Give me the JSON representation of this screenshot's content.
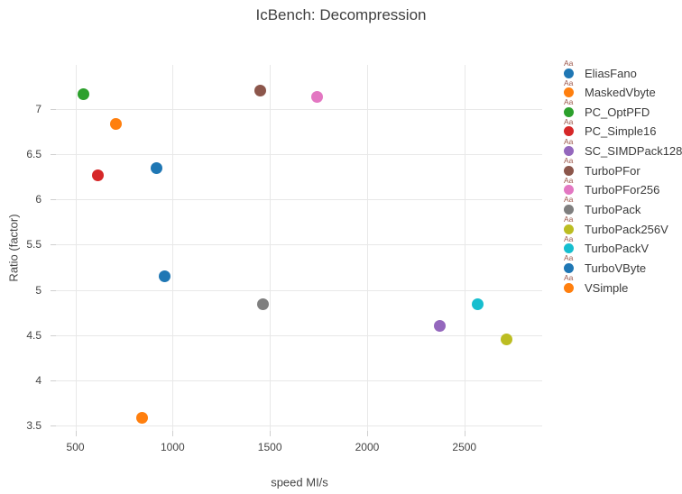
{
  "title": "IcBench: Decompression",
  "colors": {
    "background": "#ffffff",
    "grid": "#e8e8e8",
    "tick": "#cfcfcf",
    "text": "#444444",
    "legend_overlay_text": "#9c574b"
  },
  "legend": {
    "marker_overlay_text": "Aa"
  },
  "chart_data": {
    "type": "scatter",
    "title": "IcBench: Decompression",
    "xlabel": "speed MI/s",
    "ylabel": "Ratio (factor)",
    "xlim": [
      400,
      2900
    ],
    "ylim": [
      3.44,
      7.49
    ],
    "xticks": [
      500,
      1000,
      1500,
      2000,
      2500
    ],
    "yticks": [
      3.5,
      4,
      4.5,
      5,
      5.5,
      6,
      6.5,
      7
    ],
    "grid": true,
    "legend_position": "right",
    "series": [
      {
        "name": "EliasFano",
        "color": "#1f77b4",
        "x": 915,
        "y": 6.35
      },
      {
        "name": "MaskedVbyte",
        "color": "#ff7f0e",
        "x": 845,
        "y": 3.58
      },
      {
        "name": "PC_OptPFD",
        "color": "#2ca02c",
        "x": 540,
        "y": 7.17
      },
      {
        "name": "PC_Simple16",
        "color": "#d62728",
        "x": 615,
        "y": 6.27
      },
      {
        "name": "SC_SIMDPack128",
        "color": "#9467bd",
        "x": 2375,
        "y": 4.6
      },
      {
        "name": "TurboPFor",
        "color": "#8c564b",
        "x": 1450,
        "y": 7.21
      },
      {
        "name": "TurboPFor256",
        "color": "#e377c2",
        "x": 1745,
        "y": 7.14
      },
      {
        "name": "TurboPack",
        "color": "#7f7f7f",
        "x": 1465,
        "y": 4.84
      },
      {
        "name": "TurboPack256V",
        "color": "#bcbd22",
        "x": 2715,
        "y": 4.45
      },
      {
        "name": "TurboPackV",
        "color": "#17becf",
        "x": 2570,
        "y": 4.84
      },
      {
        "name": "TurboVByte",
        "color": "#1f77b4",
        "x": 960,
        "y": 5.15
      },
      {
        "name": "VSimple",
        "color": "#ff7f0e",
        "x": 710,
        "y": 6.84
      }
    ]
  }
}
